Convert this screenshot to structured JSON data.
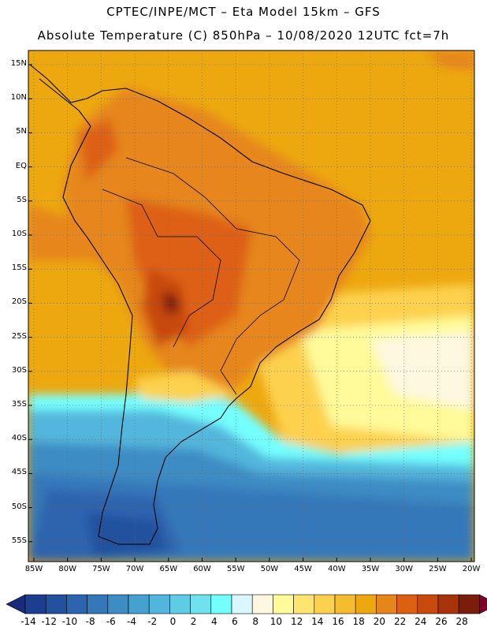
{
  "header": {
    "line1": "CPTEC/INPE/MCT –  Eta Model 15km – GFS",
    "line2": "Absolute Temperature (C) 850hPa – 10/08/2020 12UTC fct=7h"
  },
  "axes": {
    "lat_labels": [
      "15N",
      "10N",
      "5N",
      "EQ",
      "5S",
      "10S",
      "15S",
      "20S",
      "25S",
      "30S",
      "35S",
      "40S",
      "45S",
      "50S",
      "55S"
    ],
    "lon_labels": [
      "85W",
      "80W",
      "75W",
      "70W",
      "65W",
      "60W",
      "55W",
      "50W",
      "45W",
      "40W",
      "35W",
      "30W",
      "25W",
      "20W"
    ]
  },
  "colorbar": {
    "labels": [
      "-14",
      "-12",
      "-10",
      "-8",
      "-6",
      "-4",
      "-2",
      "0",
      "2",
      "4",
      "6",
      "8",
      "10",
      "12",
      "14",
      "16",
      "18",
      "20",
      "22",
      "24",
      "26",
      "28"
    ],
    "colors": [
      "#1d3e8e",
      "#24519e",
      "#2d64ae",
      "#3578b9",
      "#3d8cc4",
      "#47a1cf",
      "#52b6dc",
      "#5fcce6",
      "#6fe2ee",
      "#75ffff",
      "#d8f7ff",
      "#fff8e0",
      "#fffa9a",
      "#ffe570",
      "#fdd14e",
      "#f5bc30",
      "#eda810",
      "#e6861a",
      "#dd6012",
      "#c84a0c",
      "#a8320a",
      "#7b1d08"
    ],
    "under_color": "#1a2a7a",
    "over_color": "#80002a"
  },
  "chart_data": {
    "type": "heatmap",
    "title": "Absolute Temperature (C) 850hPa",
    "model": "Eta Model 15km – GFS",
    "run": "10/08/2020 12UTC",
    "forecast": "fct=7h",
    "lon_range": [
      -85,
      -20
    ],
    "lat_range": [
      -58,
      17
    ],
    "units": "C",
    "levels": [
      -14,
      -12,
      -10,
      -8,
      -6,
      -4,
      -2,
      0,
      2,
      4,
      6,
      8,
      10,
      12,
      14,
      16,
      18,
      20,
      22,
      24,
      26,
      28
    ]
  }
}
